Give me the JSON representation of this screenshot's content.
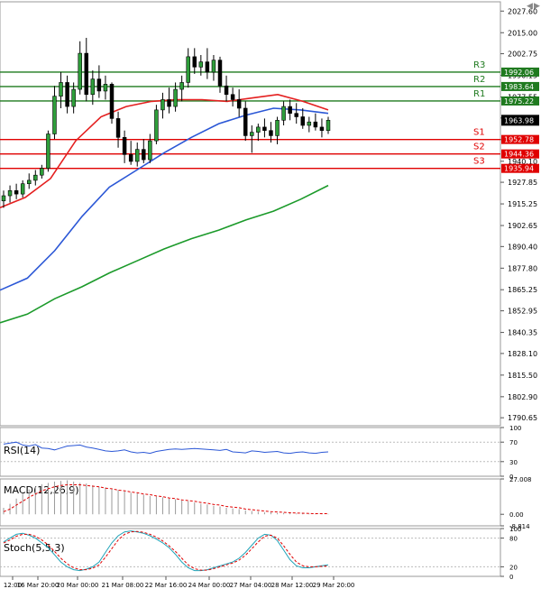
{
  "window_controls": [
    "◀",
    "▶"
  ],
  "chart_data": [
    {
      "type": "line",
      "subtype": "candlestick-price",
      "title": "",
      "ylim": [
        1786,
        2033
      ],
      "price_axis_ticks": [
        "2027.60",
        "2015.00",
        "2002.75",
        "1990.15",
        "1977.55",
        "1965.30",
        "1952.70",
        "1940.10",
        "1927.85",
        "1915.25",
        "1902.65",
        "1890.40",
        "1877.80",
        "1865.25",
        "1852.95",
        "1840.35",
        "1828.10",
        "1815.50",
        "1802.90",
        "1790.65"
      ],
      "price_axis_tick_values": [
        2027.6,
        2015.0,
        2002.75,
        1990.15,
        1977.55,
        1965.3,
        1952.7,
        1940.1,
        1927.85,
        1915.25,
        1902.65,
        1890.4,
        1877.8,
        1865.25,
        1852.95,
        1840.35,
        1828.1,
        1815.5,
        1802.9,
        1790.65
      ],
      "x_ticks": [
        "12:00",
        "16 Mar 20:00",
        "20 Mar 00:00",
        "21 Mar 08:00",
        "22 Mar 16:00",
        "24 Mar 00:00",
        "27 Mar 04:00",
        "28 Mar 12:00",
        "29 Mar 20:00"
      ],
      "current_price": {
        "label": "1963.98",
        "value": 1963.98,
        "color": "#000000"
      },
      "levels": [
        {
          "name": "R3",
          "value": 1992.06,
          "label": "1992.06",
          "color": "#1f7a1f"
        },
        {
          "name": "R2",
          "value": 1983.64,
          "label": "1983.64",
          "color": "#1f7a1f"
        },
        {
          "name": "R1",
          "value": 1975.22,
          "label": "1975.22",
          "color": "#1f7a1f"
        },
        {
          "name": "S1",
          "value": 1952.78,
          "label": "1952.78",
          "color": "#e00000"
        },
        {
          "name": "S2",
          "value": 1944.36,
          "label": "1944.36",
          "color": "#e00000"
        },
        {
          "name": "S3",
          "value": 1935.94,
          "label": "1935.94",
          "color": "#e00000"
        }
      ],
      "candles_ohlc": [
        [
          1917,
          1923,
          1913,
          1920
        ],
        [
          1920,
          1926,
          1916,
          1923
        ],
        [
          1923,
          1927,
          1918,
          1921
        ],
        [
          1921,
          1929,
          1919,
          1927
        ],
        [
          1927,
          1933,
          1924,
          1929
        ],
        [
          1929,
          1935,
          1926,
          1932
        ],
        [
          1932,
          1938,
          1930,
          1936
        ],
        [
          1936,
          1958,
          1934,
          1956
        ],
        [
          1956,
          1984,
          1953,
          1978
        ],
        [
          1978,
          1992,
          1971,
          1986
        ],
        [
          1986,
          1990,
          1968,
          1972
        ],
        [
          1972,
          1986,
          1968,
          1982
        ],
        [
          1982,
          2010,
          1979,
          2003
        ],
        [
          2003,
          2012,
          1975,
          1979
        ],
        [
          1979,
          1993,
          1973,
          1988
        ],
        [
          1988,
          1996,
          1977,
          1981
        ],
        [
          1981,
          1990,
          1976,
          1985
        ],
        [
          1985,
          1986,
          1962,
          1965
        ],
        [
          1965,
          1969,
          1948,
          1954
        ],
        [
          1954,
          1958,
          1939,
          1944
        ],
        [
          1944,
          1952,
          1938,
          1940
        ],
        [
          1940,
          1951,
          1937,
          1947
        ],
        [
          1947,
          1953,
          1939,
          1941
        ],
        [
          1941,
          1956,
          1939,
          1952
        ],
        [
          1952,
          1973,
          1950,
          1970
        ],
        [
          1970,
          1980,
          1965,
          1976
        ],
        [
          1976,
          1983,
          1968,
          1972
        ],
        [
          1972,
          1986,
          1969,
          1982
        ],
        [
          1982,
          1990,
          1975,
          1986
        ],
        [
          1986,
          2006,
          1983,
          2001
        ],
        [
          2001,
          2006,
          1991,
          1995
        ],
        [
          1995,
          2002,
          1990,
          1998
        ],
        [
          1998,
          2006,
          1988,
          1992
        ],
        [
          1992,
          2002,
          1987,
          1999
        ],
        [
          1999,
          2001,
          1980,
          1984
        ],
        [
          1984,
          1990,
          1975,
          1979
        ],
        [
          1979,
          1983,
          1972,
          1976
        ],
        [
          1976,
          1982,
          1966,
          1971
        ],
        [
          1971,
          1975,
          1952,
          1955
        ],
        [
          1955,
          1961,
          1945,
          1957
        ],
        [
          1957,
          1962,
          1952,
          1960
        ],
        [
          1960,
          1965,
          1954,
          1958
        ],
        [
          1958,
          1963,
          1951,
          1955
        ],
        [
          1955,
          1966,
          1950,
          1964
        ],
        [
          1964,
          1975,
          1961,
          1972
        ],
        [
          1972,
          1976,
          1964,
          1968
        ],
        [
          1968,
          1974,
          1962,
          1966
        ],
        [
          1966,
          1971,
          1959,
          1961
        ],
        [
          1961,
          1966,
          1957,
          1963
        ],
        [
          1963,
          1968,
          1958,
          1960
        ],
        [
          1960,
          1965,
          1954,
          1958
        ],
        [
          1958,
          1966,
          1956,
          1964
        ]
      ],
      "series": [
        {
          "color": "#e41f1f",
          "values": [
            1913,
            1919,
            1930,
            1952,
            1966,
            1972,
            1975,
            1976,
            1976,
            1975,
            1977,
            1979,
            1975,
            1970
          ]
        },
        {
          "color": "#2b57d6",
          "values": [
            1865,
            1872,
            1888,
            1908,
            1925,
            1935,
            1945,
            1954,
            1962,
            1967,
            1971,
            1970,
            1968
          ]
        },
        {
          "color": "#1b9a2a",
          "values": [
            1846,
            1851,
            1860,
            1867,
            1875,
            1882,
            1889,
            1895,
            1900,
            1906,
            1911,
            1918,
            1926
          ]
        }
      ]
    },
    {
      "type": "line",
      "label": "RSI(14)",
      "ylim": [
        0,
        100
      ],
      "axis_ticks": [
        "100",
        "70",
        "30",
        "0"
      ],
      "axis_tick_values": [
        100,
        70,
        30,
        0
      ],
      "levels": [
        70,
        30
      ],
      "series": [
        {
          "color": "#2b57d6",
          "values": [
            66,
            68,
            70,
            64,
            62,
            65,
            58,
            57,
            54,
            58,
            62,
            63,
            64,
            60,
            58,
            55,
            52,
            51,
            52,
            54,
            50,
            48,
            49,
            47,
            51,
            53,
            55,
            56,
            55,
            56,
            57,
            56,
            55,
            54,
            53,
            55,
            50,
            49,
            48,
            52,
            51,
            49,
            50,
            51,
            48,
            47,
            49,
            50,
            48,
            47,
            49,
            50
          ]
        }
      ]
    },
    {
      "type": "bar",
      "label": "MACD(12,26,9)",
      "ylim": [
        -8.814,
        27.008
      ],
      "axis_ticks": [
        "27.008",
        "0.00",
        "-8.814"
      ],
      "axis_tick_values": [
        27.008,
        0,
        -8.814
      ],
      "values": [
        5,
        8,
        12,
        16,
        19,
        21,
        23,
        24,
        25,
        25.5,
        26,
        25,
        24,
        23.5,
        22,
        21,
        20.5,
        19.5,
        18.5,
        17.5,
        16.5,
        16,
        15,
        14,
        13.5,
        13,
        12,
        11.5,
        10.5,
        10,
        9,
        8,
        7.5,
        6.5,
        6,
        5,
        4.5,
        4,
        3,
        2.5,
        2,
        1.5,
        1.5,
        1,
        1,
        0.8,
        0.6,
        0.5,
        0.4,
        0.4,
        0.3,
        0.3
      ],
      "series": [
        {
          "color": "#e00000",
          "values": [
            2,
            4,
            7,
            10,
            13,
            15.5,
            18,
            19.5,
            21,
            22,
            22.5,
            22.5,
            22.5,
            22,
            21.5,
            21,
            20,
            19.5,
            18.5,
            18,
            17,
            16.5,
            15.5,
            15,
            14,
            13.5,
            12.5,
            12,
            11,
            10.5,
            10,
            9,
            8.5,
            7.5,
            7,
            6,
            5.5,
            5,
            4,
            3.5,
            3,
            2.5,
            2,
            1.8,
            1.5,
            1.2,
            1,
            0.8,
            0.6,
            0.5,
            0.5,
            0.5
          ]
        }
      ]
    },
    {
      "type": "line",
      "label": "Stoch(5,5,3)",
      "ylim": [
        0,
        100
      ],
      "axis_ticks": [
        "100",
        "80",
        "20",
        "0"
      ],
      "axis_tick_values": [
        100,
        80,
        20,
        0
      ],
      "levels": [
        80,
        20
      ],
      "series": [
        {
          "color": "#1fa3b8",
          "values": [
            72,
            80,
            88,
            90,
            86,
            80,
            70,
            60,
            45,
            30,
            20,
            14,
            12,
            15,
            20,
            30,
            50,
            70,
            85,
            93,
            95,
            93,
            90,
            85,
            78,
            70,
            60,
            46,
            30,
            18,
            12,
            12,
            14,
            18,
            22,
            26,
            30,
            38,
            50,
            65,
            80,
            88,
            86,
            75,
            55,
            35,
            22,
            18,
            18,
            20,
            22,
            24
          ]
        },
        {
          "color": "#e00000",
          "values": [
            70,
            76,
            84,
            88,
            88,
            84,
            76,
            66,
            52,
            38,
            26,
            18,
            14,
            14,
            17,
            24,
            40,
            58,
            76,
            88,
            93,
            94,
            92,
            88,
            82,
            74,
            64,
            52,
            38,
            24,
            16,
            13,
            13,
            16,
            20,
            24,
            28,
            34,
            44,
            58,
            72,
            84,
            86,
            80,
            64,
            46,
            30,
            22,
            20,
            20,
            21,
            22
          ]
        }
      ]
    }
  ]
}
